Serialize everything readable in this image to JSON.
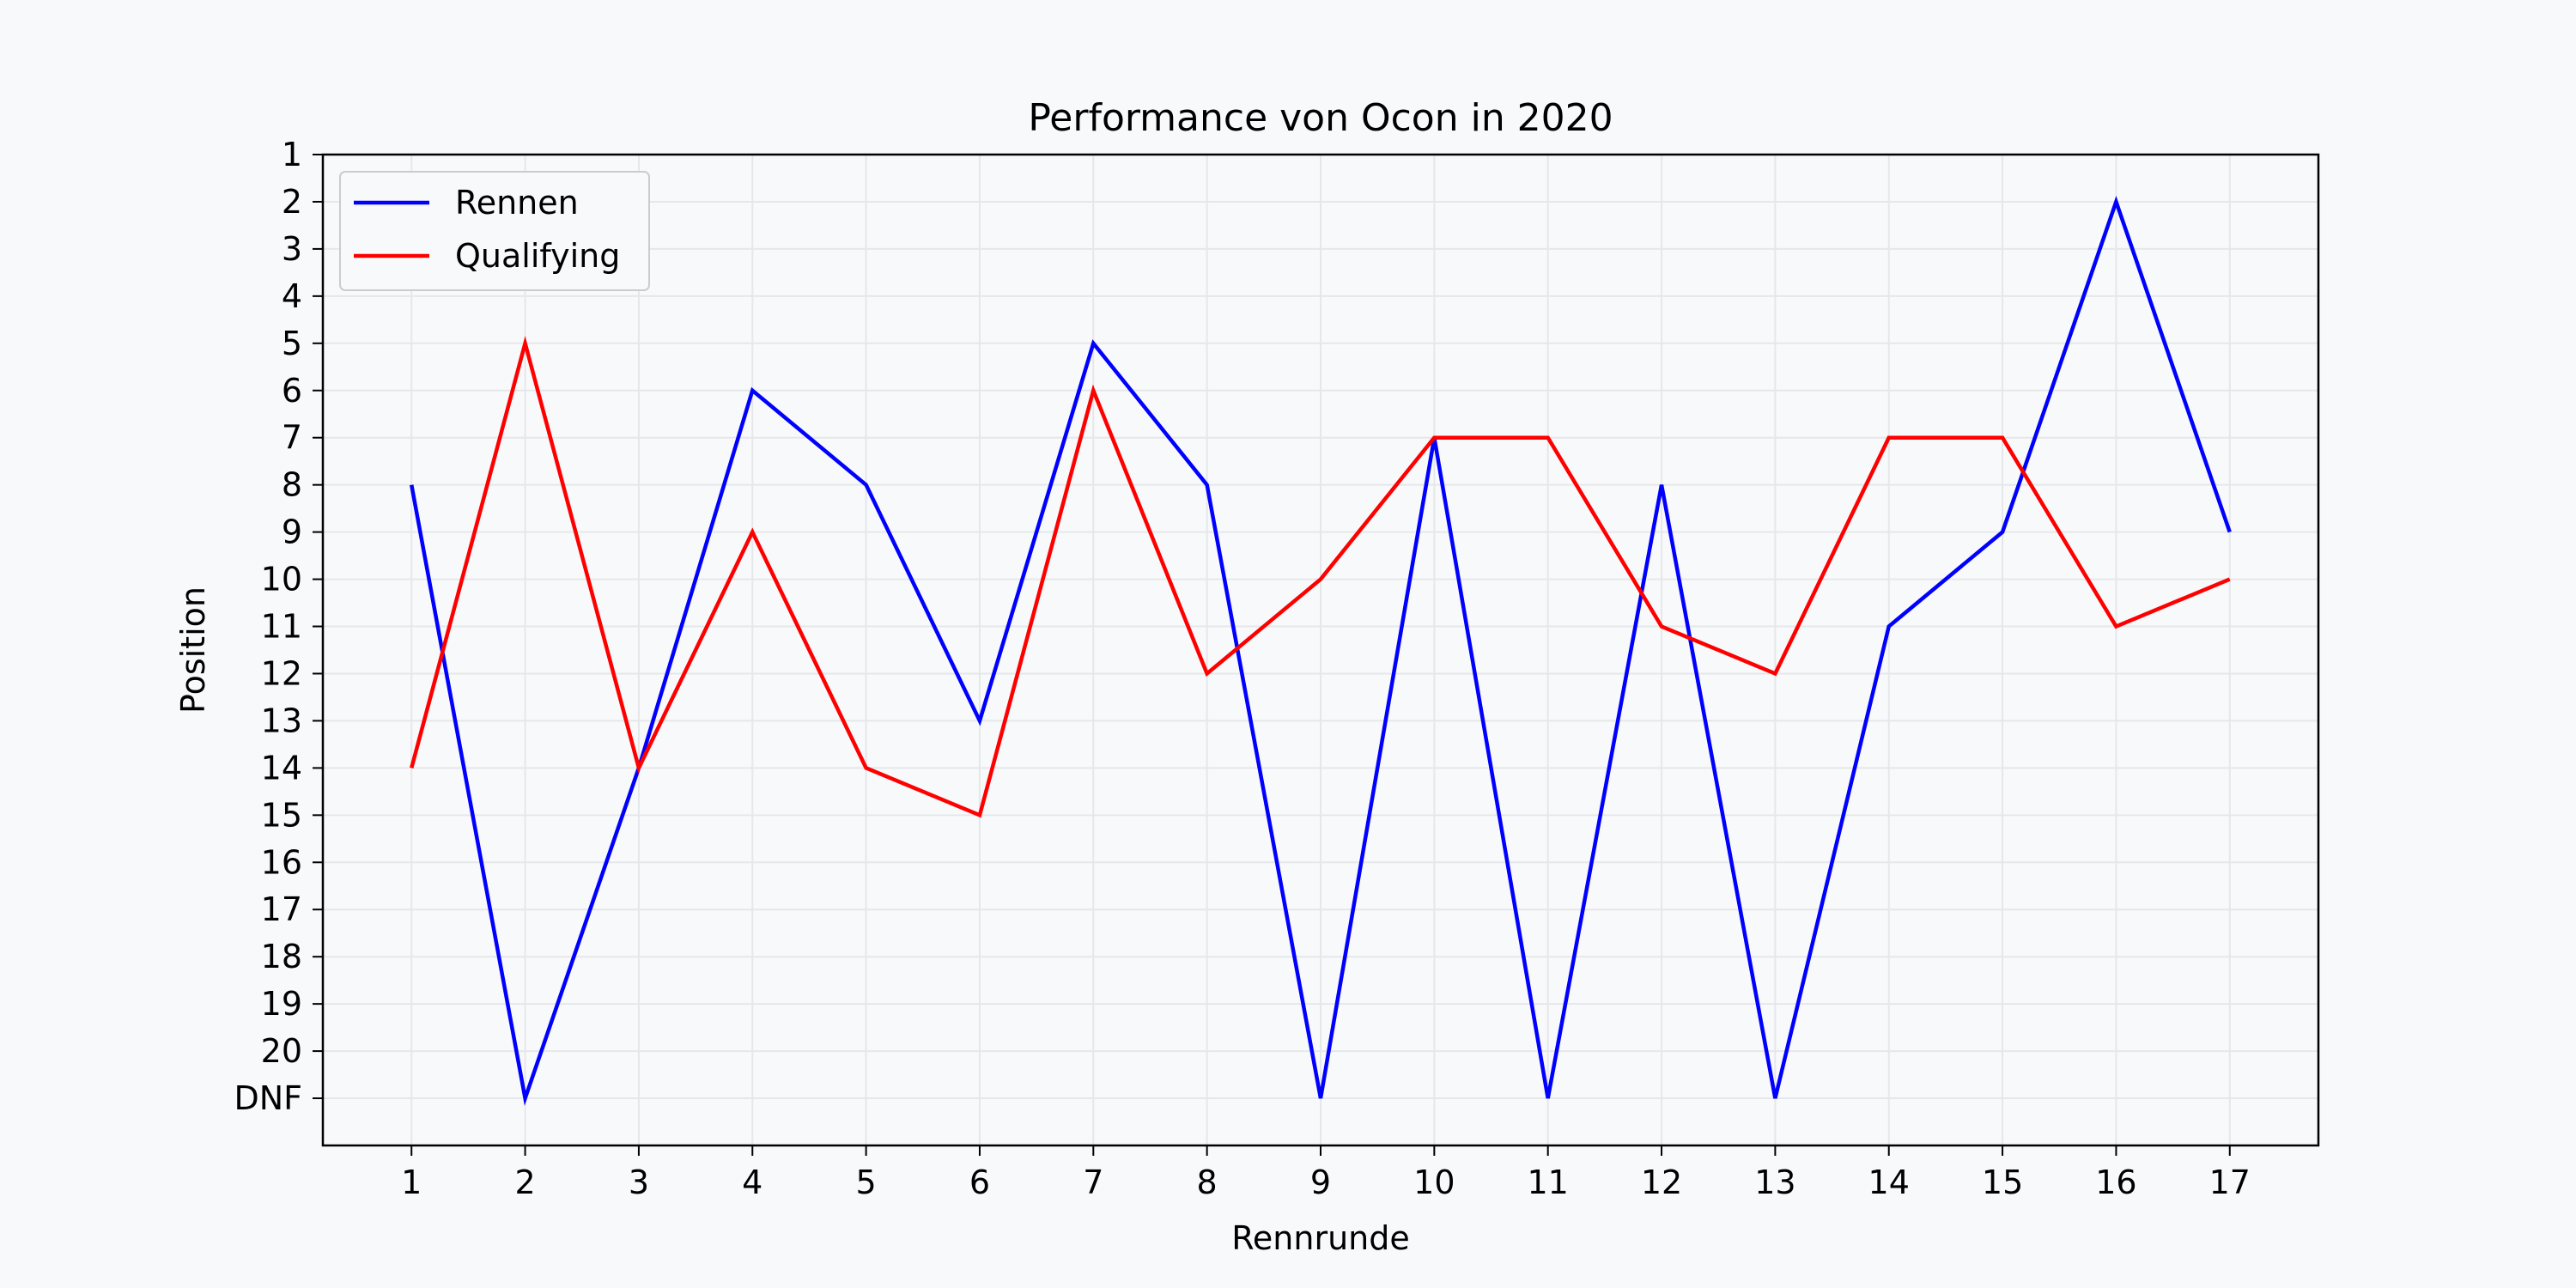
{
  "chart_data": {
    "type": "line",
    "title": "Performance von Ocon in 2020",
    "xlabel": "Rennrunde",
    "ylabel": "Position",
    "x": [
      1,
      2,
      3,
      4,
      5,
      6,
      7,
      8,
      9,
      10,
      11,
      12,
      13,
      14,
      15,
      16,
      17
    ],
    "y_tick_labels": [
      "1",
      "2",
      "3",
      "4",
      "5",
      "6",
      "7",
      "8",
      "9",
      "10",
      "11",
      "12",
      "13",
      "14",
      "15",
      "16",
      "17",
      "18",
      "19",
      "20",
      "DNF"
    ],
    "y_inverted": true,
    "grid": true,
    "legend_position": "top-left",
    "series": [
      {
        "name": "Rennen",
        "color": "#0000ff",
        "values": [
          "8",
          "DNF",
          "14",
          "6",
          "8",
          "13",
          "5",
          "8",
          "DNF",
          "7",
          "DNF",
          "8",
          "DNF",
          "11",
          "9",
          "2",
          "9"
        ]
      },
      {
        "name": "Qualifying",
        "color": "#ff0000",
        "values": [
          "14",
          "5",
          "14",
          "9",
          "14",
          "15",
          "6",
          "12",
          "10",
          "7",
          "7",
          "11",
          "12",
          "7",
          "7",
          "11",
          "10"
        ]
      }
    ]
  }
}
